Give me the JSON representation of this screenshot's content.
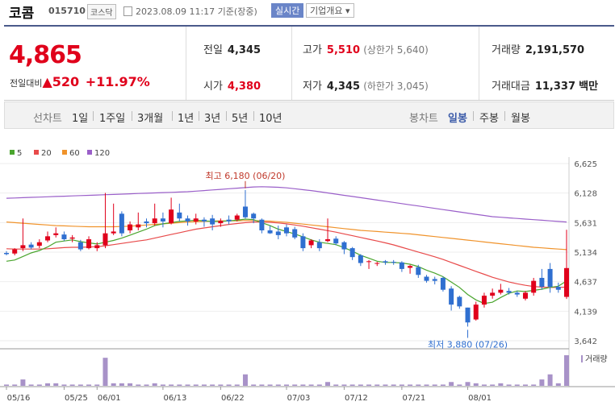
{
  "header": {
    "name": "코콤",
    "code": "015710",
    "market": "코스닥",
    "time": "2023.08.09 11:17 기준(장중)",
    "realtime": "실시간",
    "overview": "기업개요 ▾"
  },
  "quote": {
    "price": "4,865",
    "change_label": "전일대비",
    "change_value": "▲520",
    "change_pct": "+11.97%"
  },
  "stats": {
    "prev_k": "전일",
    "prev_v": "4,345",
    "high_k": "고가",
    "high_v": "5,510",
    "high_sub": "(상한가 5,640)",
    "vol_k": "거래량",
    "vol_v": "2,191,570",
    "open_k": "시가",
    "open_v": "4,380",
    "low_k": "저가",
    "low_v": "4,345",
    "low_sub": "(하한가 3,045)",
    "amt_k": "거래대금",
    "amt_v": "11,337",
    "amt_unit": "백만"
  },
  "tabs": {
    "line_label": "선차트",
    "t1": "1일",
    "t2": "1주일",
    "t3": "3개월",
    "t4": "1년",
    "t5": "3년",
    "t6": "5년",
    "t7": "10년",
    "candle_label": "봉차트",
    "c1": "일봉",
    "c2": "주봉",
    "c3": "월봉"
  },
  "colors": {
    "up": "#e0001b",
    "down": "#2f6fd0",
    "ma5": "#4aa52e",
    "ma20": "#e84a4a",
    "ma60": "#f0932b",
    "ma120": "#9a5fc9",
    "vol": "#a892c8"
  },
  "chart_data": {
    "type": "candlestick",
    "legend": [
      "5",
      "20",
      "60",
      "120"
    ],
    "ylim": [
      3642,
      6625
    ],
    "yticks": [
      "6,625",
      "6,128",
      "5,631",
      "5,134",
      "4,637",
      "4,139",
      "3,642"
    ],
    "xticks": [
      "05/16",
      "05/25",
      "06/01",
      "06/13",
      "06/22",
      "07/03",
      "07/12",
      "07/21",
      "08/01"
    ],
    "high_annotation": "최고 6,180 (06/20)",
    "low_annotation": "최저 3,880 (07/26)",
    "volume_label": "거래량",
    "candles": [
      [
        5120,
        5150,
        5080,
        5100
      ],
      [
        5110,
        5200,
        5080,
        5180
      ],
      [
        5200,
        5700,
        5150,
        5250
      ],
      [
        5260,
        5300,
        5180,
        5210
      ],
      [
        5240,
        5350,
        5200,
        5300
      ],
      [
        5330,
        5480,
        5300,
        5400
      ],
      [
        5420,
        5550,
        5380,
        5450
      ],
      [
        5430,
        5480,
        5320,
        5350
      ],
      [
        5360,
        5420,
        5300,
        5380
      ],
      [
        5300,
        5340,
        5150,
        5180
      ],
      [
        5200,
        5400,
        5180,
        5350
      ],
      [
        5200,
        5300,
        5150,
        5250
      ],
      [
        5250,
        6130,
        5200,
        5450
      ],
      [
        5450,
        5950,
        5420,
        5480
      ],
      [
        5780,
        5820,
        5400,
        5450
      ],
      [
        5500,
        5650,
        5450,
        5600
      ],
      [
        5550,
        5800,
        5500,
        5600
      ],
      [
        5650,
        5700,
        5550,
        5620
      ],
      [
        5620,
        5950,
        5580,
        5700
      ],
      [
        5700,
        5800,
        5550,
        5650
      ],
      [
        5620,
        6050,
        5600,
        5850
      ],
      [
        5800,
        5950,
        5650,
        5700
      ],
      [
        5700,
        5750,
        5580,
        5650
      ],
      [
        5650,
        5780,
        5600,
        5700
      ],
      [
        5680,
        5720,
        5560,
        5650
      ],
      [
        5700,
        5760,
        5500,
        5600
      ],
      [
        5620,
        5700,
        5560,
        5660
      ],
      [
        5680,
        5750,
        5600,
        5650
      ],
      [
        5680,
        5780,
        5650,
        5750
      ],
      [
        5900,
        6180,
        5700,
        5720
      ],
      [
        5780,
        5800,
        5620,
        5700
      ],
      [
        5680,
        5700,
        5450,
        5500
      ],
      [
        5500,
        5580,
        5440,
        5450
      ],
      [
        5480,
        5580,
        5350,
        5420
      ],
      [
        5550,
        5600,
        5400,
        5450
      ],
      [
        5520,
        5560,
        5350,
        5380
      ],
      [
        5400,
        5450,
        5150,
        5200
      ],
      [
        5250,
        5350,
        5200,
        5330
      ],
      [
        5300,
        5350,
        5150,
        5200
      ],
      [
        5320,
        5700,
        5300,
        5350
      ],
      [
        5360,
        5400,
        5250,
        5280
      ],
      [
        5300,
        5320,
        5100,
        5180
      ],
      [
        5200,
        5220,
        5000,
        5050
      ],
      [
        5080,
        5100,
        4900,
        4950
      ],
      [
        4970,
        5000,
        4850,
        4980
      ],
      [
        4950,
        4970,
        4900,
        4950
      ],
      [
        4980,
        5000,
        4920,
        4960
      ],
      [
        4970,
        5000,
        4920,
        4960
      ],
      [
        4960,
        4980,
        4800,
        4850
      ],
      [
        4870,
        4920,
        4770,
        4900
      ],
      [
        4880,
        4920,
        4700,
        4750
      ],
      [
        4720,
        4750,
        4620,
        4650
      ],
      [
        4680,
        4720,
        4590,
        4650
      ],
      [
        4700,
        4720,
        4470,
        4500
      ],
      [
        4520,
        4560,
        4150,
        4250
      ],
      [
        4380,
        4400,
        4180,
        4220
      ],
      [
        4200,
        4200,
        3880,
        3950
      ],
      [
        4000,
        4300,
        3980,
        4250
      ],
      [
        4250,
        4450,
        4200,
        4400
      ],
      [
        4400,
        4520,
        4350,
        4450
      ],
      [
        4450,
        4600,
        4420,
        4500
      ],
      [
        4480,
        4530,
        4420,
        4450
      ],
      [
        4450,
        4480,
        4380,
        4420
      ],
      [
        4350,
        4480,
        4320,
        4450
      ],
      [
        4450,
        4700,
        4400,
        4650
      ],
      [
        4700,
        4850,
        4500,
        4550
      ],
      [
        4850,
        4950,
        4450,
        4550
      ],
      [
        4550,
        4620,
        4450,
        4500
      ],
      [
        4380,
        5510,
        4345,
        4865
      ]
    ],
    "volume": [
      1,
      1,
      5,
      1,
      1,
      2,
      2,
      1,
      1,
      1,
      1,
      1,
      22,
      2,
      2,
      2,
      1,
      1,
      2,
      1,
      1,
      1,
      1,
      1,
      1,
      1,
      1,
      1,
      1,
      9,
      1,
      1,
      1,
      1,
      1,
      1,
      1,
      1,
      1,
      3,
      1,
      1,
      1,
      1,
      1,
      1,
      1,
      1,
      1,
      1,
      1,
      1,
      1,
      1,
      3,
      1,
      3,
      2,
      1,
      1,
      2,
      1,
      1,
      1,
      1,
      5,
      9,
      2,
      24
    ],
    "ma5": [
      4980,
      5000,
      5060,
      5120,
      5160,
      5220,
      5300,
      5320,
      5340,
      5310,
      5290,
      5270,
      5300,
      5330,
      5370,
      5420,
      5470,
      5520,
      5580,
      5610,
      5630,
      5650,
      5660,
      5670,
      5660,
      5650,
      5650,
      5660,
      5670,
      5690,
      5680,
      5630,
      5580,
      5520,
      5480,
      5440,
      5390,
      5340,
      5300,
      5280,
      5260,
      5210,
      5150,
      5080,
      5030,
      4980,
      4960,
      4960,
      4950,
      4930,
      4890,
      4830,
      4780,
      4720,
      4630,
      4540,
      4420,
      4330,
      4270,
      4290,
      4370,
      4440,
      4480,
      4470,
      4490,
      4510,
      4540,
      4560,
      4650
    ],
    "ma20": [
      5190,
      5185,
      5185,
      5185,
      5185,
      5190,
      5200,
      5210,
      5215,
      5215,
      5220,
      5225,
      5240,
      5260,
      5280,
      5300,
      5320,
      5340,
      5370,
      5400,
      5430,
      5460,
      5490,
      5520,
      5540,
      5560,
      5580,
      5600,
      5615,
      5630,
      5640,
      5640,
      5635,
      5625,
      5610,
      5590,
      5570,
      5545,
      5520,
      5495,
      5470,
      5440,
      5410,
      5380,
      5350,
      5320,
      5290,
      5255,
      5215,
      5175,
      5135,
      5095,
      5055,
      5010,
      4960,
      4910,
      4860,
      4810,
      4760,
      4710,
      4670,
      4630,
      4600,
      4575,
      4555,
      4545,
      4540,
      4540,
      4545
    ],
    "ma60": [
      5640,
      5630,
      5620,
      5610,
      5600,
      5590,
      5580,
      5575,
      5570,
      5565,
      5560,
      5560,
      5560,
      5560,
      5565,
      5570,
      5580,
      5590,
      5600,
      5610,
      5620,
      5630,
      5640,
      5645,
      5650,
      5655,
      5660,
      5660,
      5660,
      5665,
      5665,
      5660,
      5655,
      5645,
      5635,
      5620,
      5605,
      5590,
      5575,
      5560,
      5545,
      5530,
      5515,
      5500,
      5490,
      5480,
      5470,
      5460,
      5450,
      5440,
      5425,
      5410,
      5395,
      5380,
      5365,
      5350,
      5335,
      5320,
      5305,
      5290,
      5275,
      5260,
      5245,
      5230,
      5215,
      5205,
      5195,
      5185,
      5175
    ],
    "ma120": [
      6040,
      6045,
      6050,
      6055,
      6060,
      6065,
      6070,
      6075,
      6080,
      6085,
      6090,
      6095,
      6100,
      6105,
      6110,
      6115,
      6120,
      6125,
      6130,
      6135,
      6140,
      6145,
      6150,
      6160,
      6170,
      6180,
      6190,
      6200,
      6210,
      6220,
      6230,
      6235,
      6230,
      6225,
      6215,
      6200,
      6185,
      6170,
      6150,
      6130,
      6110,
      6090,
      6070,
      6050,
      6030,
      6010,
      5990,
      5970,
      5950,
      5930,
      5910,
      5890,
      5870,
      5850,
      5830,
      5810,
      5790,
      5770,
      5750,
      5730,
      5720,
      5710,
      5700,
      5690,
      5680,
      5670,
      5660,
      5650,
      5640
    ]
  }
}
